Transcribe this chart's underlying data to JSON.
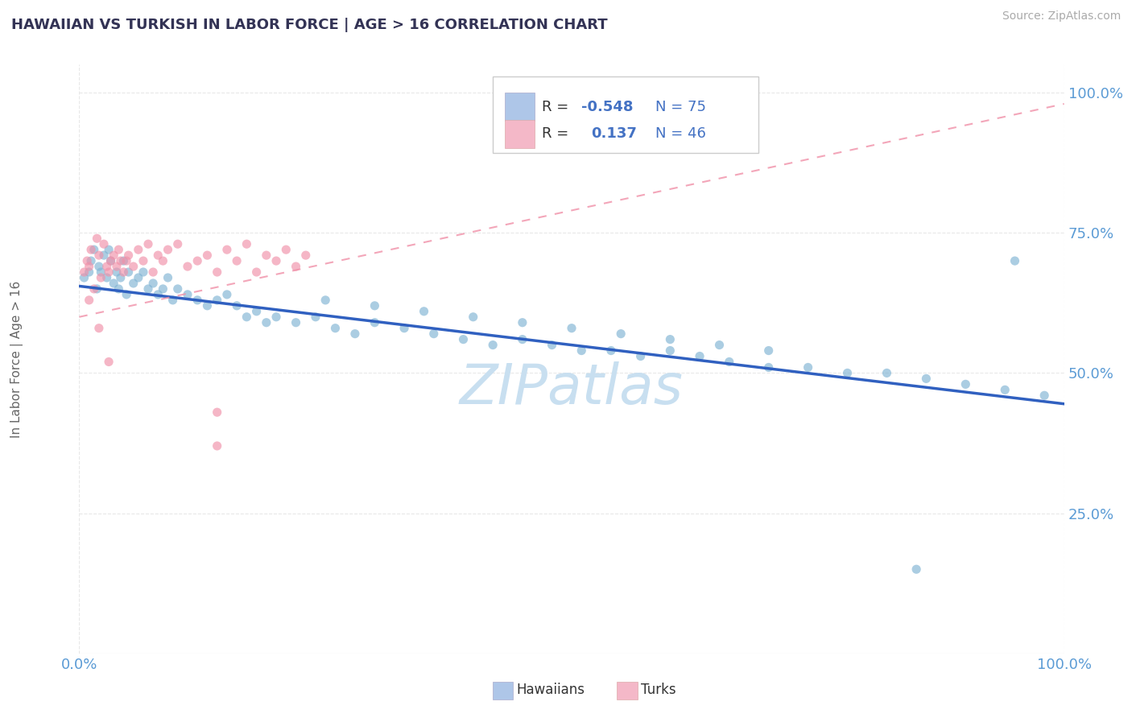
{
  "title": "HAWAIIAN VS TURKISH IN LABOR FORCE | AGE > 16 CORRELATION CHART",
  "source_text": "Source: ZipAtlas.com",
  "ylabel": "In Labor Force | Age > 16",
  "watermark": "ZIPatlas",
  "watermark_color": "#c8dff0",
  "hawaiians_color": "#7fb3d3",
  "turks_color": "#f090a8",
  "blue_line_color": "#3060c0",
  "pink_line_color": "#f090a8",
  "grid_color": "#e8e8e8",
  "background_color": "#ffffff",
  "title_color": "#333355",
  "axis_tick_color": "#5b9bd5",
  "xtick_label_color": "#5b9bd5",
  "ytick_labels": [
    "25.0%",
    "50.0%",
    "75.0%",
    "100.0%"
  ],
  "yticks": [
    0.25,
    0.5,
    0.75,
    1.0
  ],
  "blue_intercept": 0.655,
  "blue_slope": -0.21,
  "pink_intercept": 0.6,
  "pink_slope": 0.38,
  "xlim": [
    0.0,
    1.0
  ],
  "ylim": [
    0.0,
    1.05
  ],
  "hawaiians_x": [
    0.005,
    0.01,
    0.012,
    0.015,
    0.018,
    0.02,
    0.022,
    0.025,
    0.028,
    0.03,
    0.032,
    0.035,
    0.038,
    0.04,
    0.042,
    0.045,
    0.048,
    0.05,
    0.055,
    0.06,
    0.065,
    0.07,
    0.075,
    0.08,
    0.085,
    0.09,
    0.095,
    0.1,
    0.11,
    0.12,
    0.13,
    0.14,
    0.15,
    0.16,
    0.17,
    0.18,
    0.19,
    0.2,
    0.22,
    0.24,
    0.26,
    0.28,
    0.3,
    0.33,
    0.36,
    0.39,
    0.42,
    0.45,
    0.48,
    0.51,
    0.54,
    0.57,
    0.6,
    0.63,
    0.66,
    0.7,
    0.74,
    0.78,
    0.82,
    0.86,
    0.9,
    0.94,
    0.98,
    0.25,
    0.3,
    0.35,
    0.4,
    0.45,
    0.5,
    0.55,
    0.6,
    0.65,
    0.7,
    0.95,
    0.85
  ],
  "hawaiians_y": [
    0.67,
    0.68,
    0.7,
    0.72,
    0.65,
    0.69,
    0.68,
    0.71,
    0.67,
    0.72,
    0.7,
    0.66,
    0.68,
    0.65,
    0.67,
    0.7,
    0.64,
    0.68,
    0.66,
    0.67,
    0.68,
    0.65,
    0.66,
    0.64,
    0.65,
    0.67,
    0.63,
    0.65,
    0.64,
    0.63,
    0.62,
    0.63,
    0.64,
    0.62,
    0.6,
    0.61,
    0.59,
    0.6,
    0.59,
    0.6,
    0.58,
    0.57,
    0.59,
    0.58,
    0.57,
    0.56,
    0.55,
    0.56,
    0.55,
    0.54,
    0.54,
    0.53,
    0.54,
    0.53,
    0.52,
    0.51,
    0.51,
    0.5,
    0.5,
    0.49,
    0.48,
    0.47,
    0.46,
    0.63,
    0.62,
    0.61,
    0.6,
    0.59,
    0.58,
    0.57,
    0.56,
    0.55,
    0.54,
    0.7,
    0.15
  ],
  "turks_x": [
    0.005,
    0.008,
    0.01,
    0.012,
    0.015,
    0.018,
    0.02,
    0.022,
    0.025,
    0.028,
    0.03,
    0.032,
    0.035,
    0.038,
    0.04,
    0.042,
    0.045,
    0.048,
    0.05,
    0.055,
    0.06,
    0.065,
    0.07,
    0.075,
    0.08,
    0.085,
    0.09,
    0.1,
    0.11,
    0.12,
    0.13,
    0.14,
    0.15,
    0.16,
    0.17,
    0.18,
    0.19,
    0.2,
    0.21,
    0.22,
    0.23,
    0.01,
    0.02,
    0.03,
    0.14,
    0.14
  ],
  "turks_y": [
    0.68,
    0.7,
    0.69,
    0.72,
    0.65,
    0.74,
    0.71,
    0.67,
    0.73,
    0.69,
    0.68,
    0.7,
    0.71,
    0.69,
    0.72,
    0.7,
    0.68,
    0.7,
    0.71,
    0.69,
    0.72,
    0.7,
    0.73,
    0.68,
    0.71,
    0.7,
    0.72,
    0.73,
    0.69,
    0.7,
    0.71,
    0.68,
    0.72,
    0.7,
    0.73,
    0.68,
    0.71,
    0.7,
    0.72,
    0.69,
    0.71,
    0.63,
    0.58,
    0.52,
    0.37,
    0.43
  ]
}
